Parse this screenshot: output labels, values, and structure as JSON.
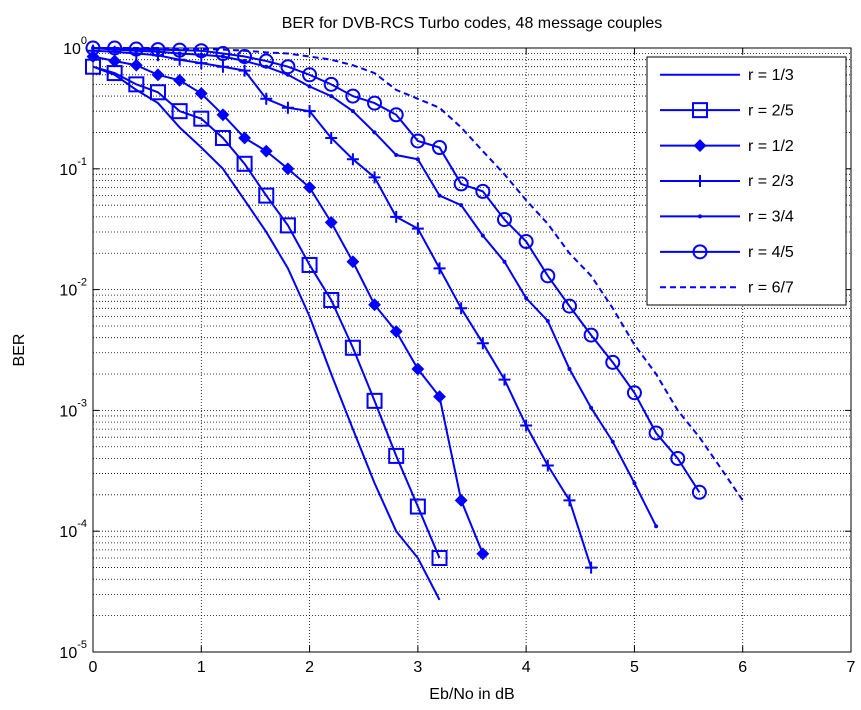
{
  "chart_data": {
    "type": "line",
    "title": "BER for DVB-RCS Turbo codes, 48 message couples",
    "x_label": "Eb/No in dB",
    "y_label": "BER",
    "log_y": true,
    "grid": true,
    "legend": "upper right",
    "xlim": [
      0,
      7
    ],
    "xticks": [
      0,
      1,
      2,
      3,
      4,
      5,
      6,
      7
    ],
    "ylim": [
      1e-05,
      1
    ],
    "yticks": [
      {
        "value": 1e-05,
        "label": "10^-5"
      },
      {
        "value": 0.0001,
        "label": "10^-4"
      },
      {
        "value": 0.001,
        "label": "10^-3"
      },
      {
        "value": 0.01,
        "label": "10^-2"
      },
      {
        "value": 0.1,
        "label": "10^-1"
      },
      {
        "value": 1,
        "label": "10^0"
      }
    ],
    "series": [
      {
        "name": "r = 1/3",
        "color": "#0000ff",
        "marker": "none",
        "linestyle": "solid",
        "x": [
          0,
          0.2,
          0.4,
          0.6,
          0.8,
          1.0,
          1.2,
          1.4,
          1.6,
          1.8,
          2.0,
          2.2,
          2.4,
          2.6,
          2.8,
          3.0,
          3.2
        ],
        "values": [
          0.7,
          0.6,
          0.45,
          0.35,
          0.22,
          0.15,
          0.1,
          0.055,
          0.03,
          0.015,
          0.006,
          0.002,
          0.0007,
          0.00025,
          0.0001,
          6e-05,
          2.7e-05
        ]
      },
      {
        "name": "r = 2/5",
        "color": "#0000ff",
        "marker": "square",
        "linestyle": "solid",
        "x": [
          0,
          0.2,
          0.4,
          0.6,
          0.8,
          1.0,
          1.2,
          1.4,
          1.6,
          1.8,
          2.0,
          2.2,
          2.4,
          2.6,
          2.8,
          3.0,
          3.2
        ],
        "values": [
          0.7,
          0.62,
          0.5,
          0.43,
          0.3,
          0.26,
          0.18,
          0.11,
          0.06,
          0.034,
          0.016,
          0.0082,
          0.0033,
          0.0012,
          0.00042,
          0.00016,
          6e-05
        ]
      },
      {
        "name": "r = 1/2",
        "color": "#0000ff",
        "marker": "diamond",
        "linestyle": "solid",
        "x": [
          0,
          0.2,
          0.4,
          0.6,
          0.8,
          1.0,
          1.2,
          1.4,
          1.6,
          1.8,
          2.0,
          2.2,
          2.4,
          2.6,
          2.8,
          3.0,
          3.2,
          3.4,
          3.6
        ],
        "values": [
          0.85,
          0.78,
          0.72,
          0.6,
          0.54,
          0.42,
          0.28,
          0.18,
          0.14,
          0.1,
          0.07,
          0.036,
          0.017,
          0.0075,
          0.0045,
          0.0022,
          0.0013,
          0.00018,
          6.5e-05
        ]
      },
      {
        "name": "r = 2/3",
        "color": "#0000ff",
        "marker": "plus",
        "linestyle": "solid",
        "x": [
          0,
          0.2,
          0.4,
          0.6,
          0.8,
          1.0,
          1.2,
          1.4,
          1.6,
          1.8,
          2.0,
          2.2,
          2.4,
          2.6,
          2.8,
          3.0,
          3.2,
          3.4,
          3.6,
          3.8,
          4.0,
          4.2,
          4.4,
          4.6
        ],
        "values": [
          0.95,
          0.93,
          0.9,
          0.87,
          0.8,
          0.75,
          0.7,
          0.65,
          0.38,
          0.32,
          0.3,
          0.18,
          0.12,
          0.085,
          0.04,
          0.032,
          0.015,
          0.007,
          0.0036,
          0.0018,
          0.00075,
          0.00035,
          0.00018,
          5e-05
        ]
      },
      {
        "name": "r = 3/4",
        "color": "#0000ff",
        "marker": "dot",
        "linestyle": "solid",
        "x": [
          0,
          0.2,
          0.4,
          0.6,
          0.8,
          1.0,
          1.2,
          1.4,
          1.6,
          1.8,
          2.0,
          2.2,
          2.4,
          2.6,
          2.8,
          3.0,
          3.2,
          3.4,
          3.6,
          3.8,
          4.0,
          4.2,
          4.4,
          4.6,
          4.8,
          5.0,
          5.2
        ],
        "values": [
          1.0,
          0.97,
          0.95,
          0.93,
          0.9,
          0.88,
          0.85,
          0.78,
          0.7,
          0.6,
          0.48,
          0.4,
          0.3,
          0.2,
          0.13,
          0.12,
          0.06,
          0.05,
          0.028,
          0.017,
          0.0085,
          0.0055,
          0.0022,
          0.00105,
          0.00055,
          0.00025,
          0.00011
        ]
      },
      {
        "name": "r = 4/5",
        "color": "#0000ff",
        "marker": "circle",
        "linestyle": "solid",
        "x": [
          0,
          0.2,
          0.4,
          0.6,
          0.8,
          1.0,
          1.2,
          1.4,
          1.6,
          1.8,
          2.0,
          2.2,
          2.4,
          2.6,
          2.8,
          3.0,
          3.2,
          3.4,
          3.6,
          3.8,
          4.0,
          4.2,
          4.4,
          4.6,
          4.8,
          5.0,
          5.2,
          5.4,
          5.6
        ],
        "values": [
          1.0,
          1.0,
          0.98,
          0.97,
          0.96,
          0.95,
          0.9,
          0.85,
          0.78,
          0.7,
          0.6,
          0.5,
          0.4,
          0.35,
          0.28,
          0.17,
          0.15,
          0.075,
          0.065,
          0.038,
          0.025,
          0.013,
          0.0073,
          0.0042,
          0.0025,
          0.0014,
          0.00065,
          0.0004,
          0.00021
        ]
      },
      {
        "name": "r = 6/7",
        "color": "#0000ff",
        "marker": "none",
        "linestyle": "dashed",
        "x": [
          0,
          0.2,
          0.4,
          0.6,
          0.8,
          1.0,
          1.2,
          1.4,
          1.6,
          1.8,
          2.0,
          2.2,
          2.4,
          2.6,
          2.8,
          3.0,
          3.2,
          3.4,
          3.6,
          3.8,
          4.0,
          4.2,
          4.4,
          4.6,
          4.8,
          5.0,
          5.2,
          5.4,
          5.6,
          5.8,
          6.0
        ],
        "values": [
          1.0,
          1.0,
          1.0,
          1.0,
          0.99,
          0.98,
          0.97,
          0.95,
          0.92,
          0.9,
          0.85,
          0.8,
          0.72,
          0.62,
          0.45,
          0.38,
          0.32,
          0.22,
          0.14,
          0.09,
          0.055,
          0.035,
          0.02,
          0.013,
          0.007,
          0.0035,
          0.002,
          0.001,
          0.0006,
          0.00033,
          0.00018
        ]
      }
    ]
  }
}
